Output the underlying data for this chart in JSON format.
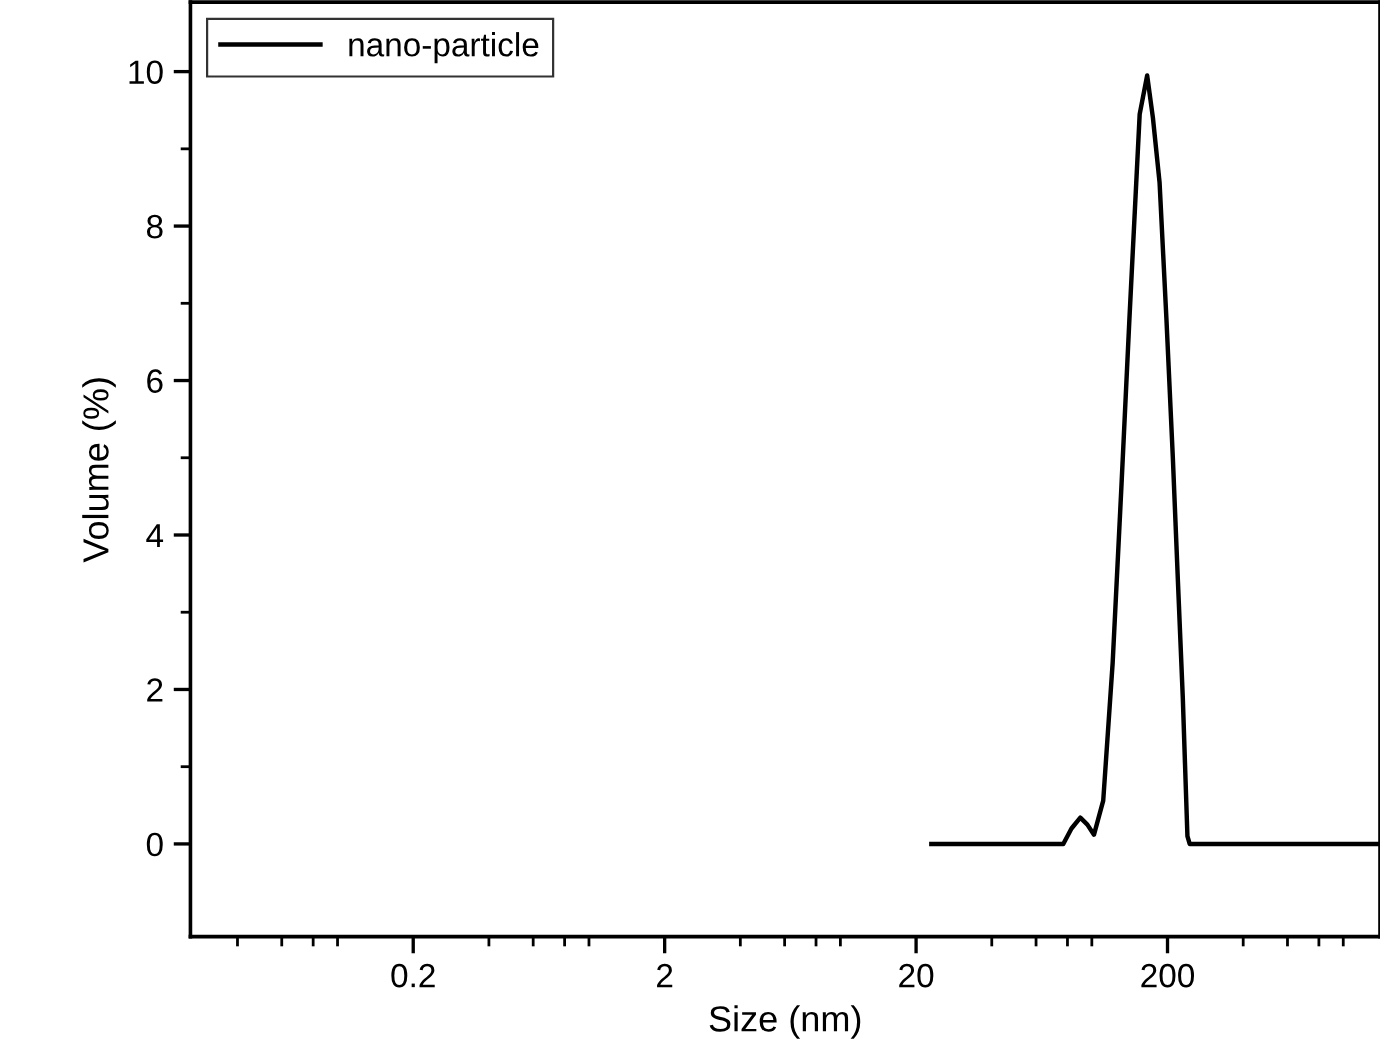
{
  "chart_data": {
    "type": "line",
    "xlabel": "Size (nm)",
    "ylabel": "Volume (%)",
    "log": "x",
    "xlim": [
      0.026,
      1400
    ],
    "xticks": [
      0.2,
      2,
      20,
      200
    ],
    "ylim": [
      -1.2,
      10.9
    ],
    "yticks": [
      0,
      2,
      4,
      6,
      8,
      10
    ],
    "grid": false,
    "legend": "top left",
    "marker": "none",
    "line_style": "solid",
    "series": [
      {
        "name": "nano-particle",
        "color": "#000000",
        "x": [
          23,
          77,
          83,
          90,
          96,
          102,
          111,
          121,
          131,
          141,
          155,
          166,
          175,
          186,
          198,
          210,
          220,
          230,
          240,
          245,
          1380
        ],
        "values": [
          0,
          0,
          0.2,
          0.34,
          0.25,
          0.12,
          0.56,
          2.34,
          4.6,
          6.78,
          9.45,
          9.95,
          9.4,
          8.56,
          6.8,
          5.0,
          3.4,
          1.9,
          0.1,
          0,
          0
        ]
      }
    ]
  }
}
